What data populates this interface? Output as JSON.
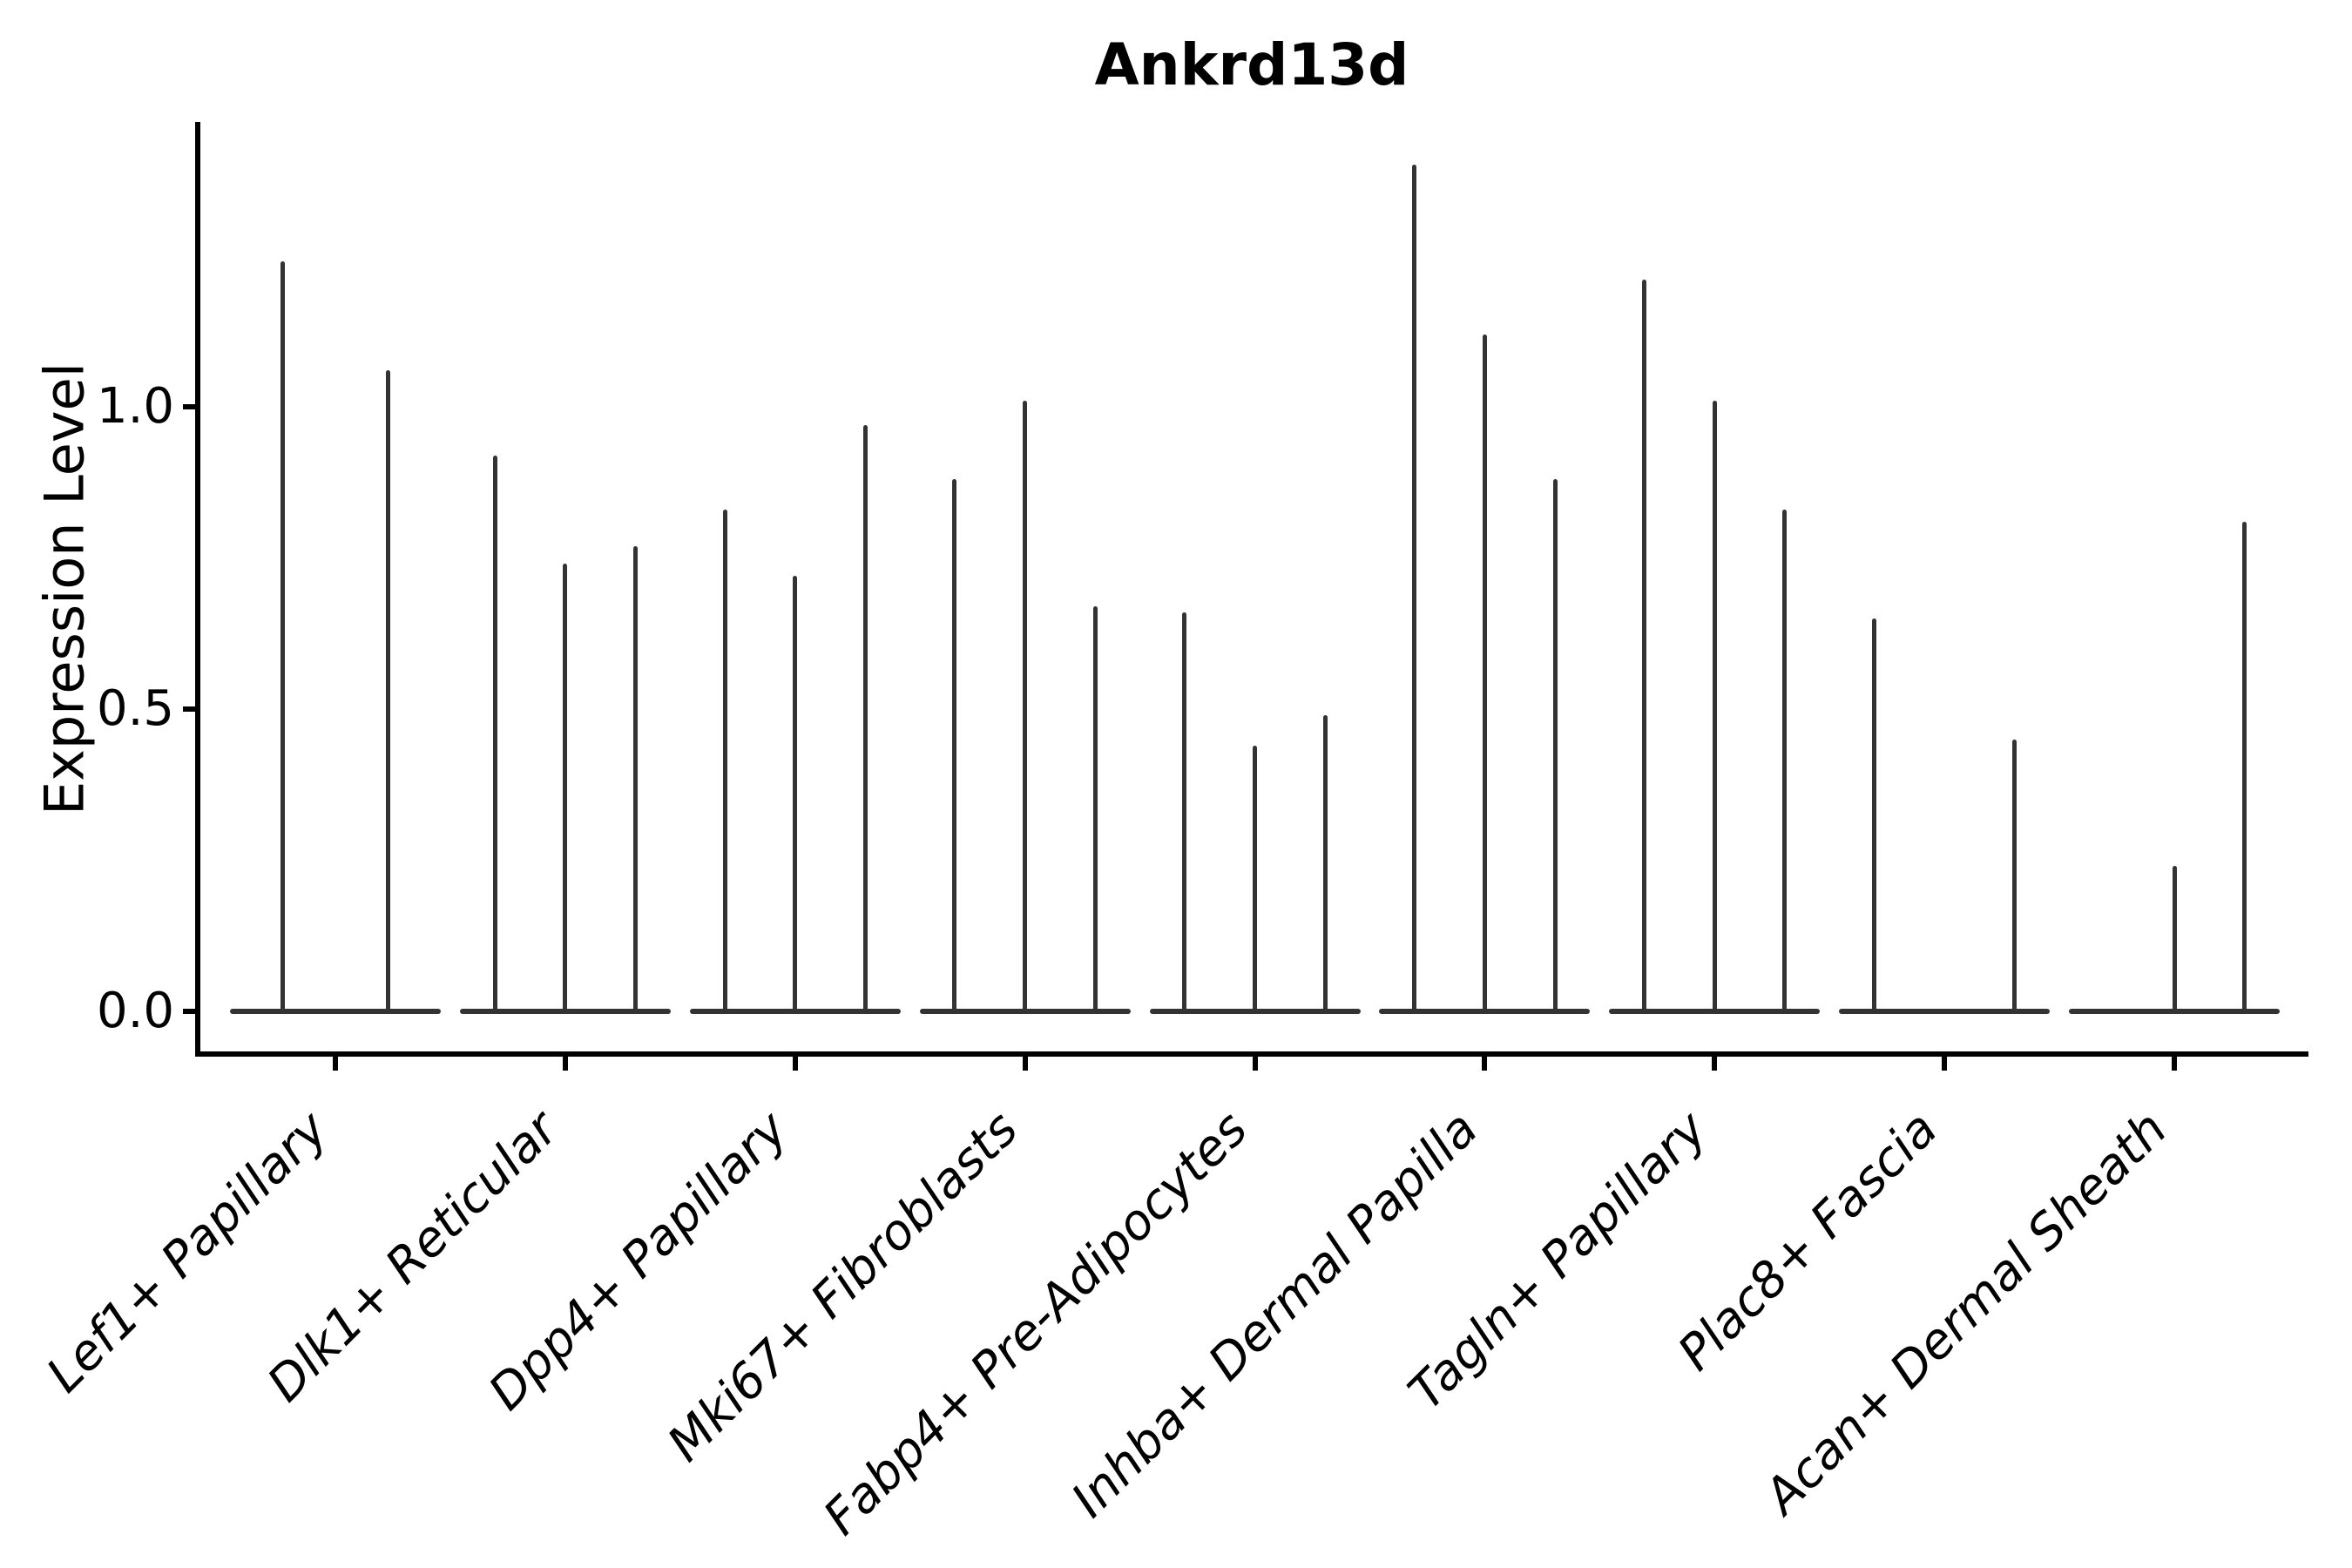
{
  "figure": {
    "title": "Ankrd13d",
    "y_axis_label": "Expression Level"
  },
  "chart_data": {
    "type": "violin",
    "title": "Ankrd13d",
    "xlabel": "",
    "ylabel": "Expression Level",
    "ylim": [
      -0.07,
      1.47
    ],
    "grid": false,
    "legend_position": "none",
    "y_ticks": [
      {
        "value": 0.0,
        "label": "0.0"
      },
      {
        "value": 0.5,
        "label": "0.5"
      },
      {
        "value": 1.0,
        "label": "1.0"
      }
    ],
    "categories": [
      "Lef1+ Papillary",
      "Dlk1+ Reticular",
      "Dpp4+ Papillary",
      "Mki67+ Fibroblasts",
      "Fabp4+ Pre-Adipocytes",
      "Inhba+ Dermal Papilla",
      "Tagln+ Papillary",
      "Plac8+ Fascia",
      "Acan+ Dermal Sheath"
    ],
    "groups": [
      {
        "category": "Lef1+ Papillary",
        "violin_max_values": [
          1.24,
          1.06
        ]
      },
      {
        "category": "Dlk1+ Reticular",
        "violin_max_values": [
          0.92,
          0.74,
          0.77
        ]
      },
      {
        "category": "Dpp4+ Papillary",
        "violin_max_values": [
          0.83,
          0.72,
          0.97
        ]
      },
      {
        "category": "Mki67+ Fibroblasts",
        "violin_max_values": [
          0.88,
          1.01,
          0.67
        ]
      },
      {
        "category": "Fabp4+ Pre-Adipocytes",
        "violin_max_values": [
          0.66,
          0.44,
          0.49
        ]
      },
      {
        "category": "Inhba+ Dermal Papilla",
        "violin_max_values": [
          1.4,
          1.12,
          0.88
        ]
      },
      {
        "category": "Tagln+ Papillary",
        "violin_max_values": [
          1.21,
          1.01,
          0.83
        ]
      },
      {
        "category": "Plac8+ Fascia",
        "violin_max_values": [
          0.65,
          0.0,
          0.45
        ]
      },
      {
        "category": "Acan+ Dermal Sheath",
        "violin_max_values": [
          0.0,
          0.24,
          0.81
        ]
      }
    ],
    "colors": {
      "ink": "#000000",
      "violin": "#333333",
      "background": "#ffffff"
    }
  }
}
